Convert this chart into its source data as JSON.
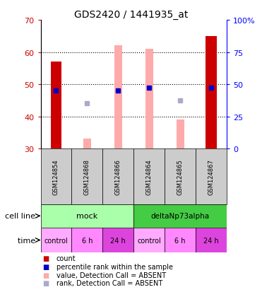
{
  "title": "GDS2420 / 1441935_at",
  "samples": [
    "GSM124854",
    "GSM124868",
    "GSM124866",
    "GSM124864",
    "GSM124865",
    "GSM124867"
  ],
  "ylim_left": [
    30,
    70
  ],
  "ylim_right": [
    0,
    100
  ],
  "yticks_left": [
    30,
    40,
    50,
    60,
    70
  ],
  "yticks_right": [
    0,
    25,
    50,
    75,
    100
  ],
  "count_values": [
    57,
    null,
    null,
    null,
    null,
    65
  ],
  "count_color": "#cc0000",
  "rank_values": [
    48,
    null,
    48,
    49,
    null,
    49
  ],
  "rank_color": "#0000cc",
  "absent_value_bars": [
    null,
    33,
    62,
    61,
    39,
    null
  ],
  "absent_value_color": "#ffaaaa",
  "absent_rank_dots": [
    null,
    44,
    48,
    null,
    45,
    null
  ],
  "absent_rank_color": "#aaaacc",
  "cell_line_mock_color": "#aaffaa",
  "cell_line_delta_color": "#44cc44",
  "mock_label": "mock",
  "delta_label": "deltaNp73alpha",
  "time_labels": [
    "control",
    "6 h",
    "24 h",
    "control",
    "6 h",
    "24 h"
  ],
  "time_bg_colors": [
    "#ffaaff",
    "#ff88ff",
    "#dd44dd",
    "#ffaaff",
    "#ff88ff",
    "#dd44dd"
  ],
  "sample_bg_color": "#cccccc",
  "legend_items": [
    {
      "text": "count",
      "color": "#cc0000"
    },
    {
      "text": "percentile rank within the sample",
      "color": "#0000cc"
    },
    {
      "text": "value, Detection Call = ABSENT",
      "color": "#ffaaaa"
    },
    {
      "text": "rank, Detection Call = ABSENT",
      "color": "#aaaacc"
    }
  ],
  "bar_width": 0.35,
  "absent_bar_width": 0.25
}
